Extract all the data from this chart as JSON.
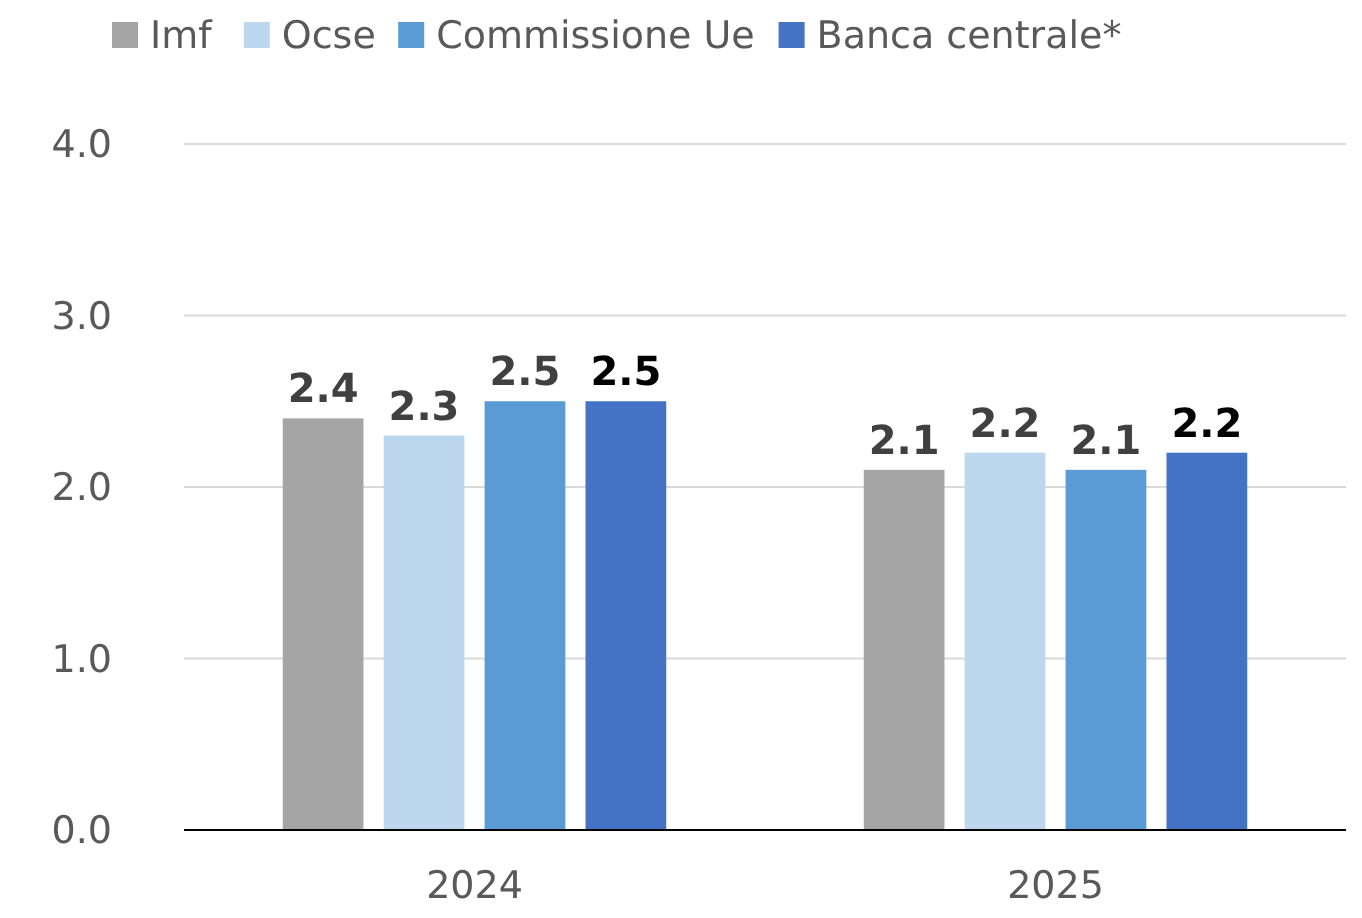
{
  "chart_data": {
    "type": "bar",
    "categories": [
      "2024",
      "2025"
    ],
    "series": [
      {
        "name": "Imf",
        "color": "#a5a5a5",
        "values": [
          2.4,
          2.1
        ]
      },
      {
        "name": "Ocse",
        "color": "#bdd7ee",
        "values": [
          2.3,
          2.2
        ]
      },
      {
        "name": "Commissione Ue",
        "color": "#5b9bd5",
        "values": [
          2.5,
          2.1
        ]
      },
      {
        "name": "Banca centrale*",
        "color": "#4472c4",
        "values": [
          2.5,
          2.2
        ]
      }
    ],
    "ylim": [
      0,
      4
    ],
    "yticks": [
      {
        "value": 0,
        "label": "0.0"
      },
      {
        "value": 1,
        "label": "1.0"
      },
      {
        "value": 2,
        "label": "2.0"
      },
      {
        "value": 3,
        "label": "3.0"
      },
      {
        "value": 4,
        "label": "4.0"
      }
    ],
    "grid": "y",
    "legend": "top",
    "data_labels": true
  }
}
